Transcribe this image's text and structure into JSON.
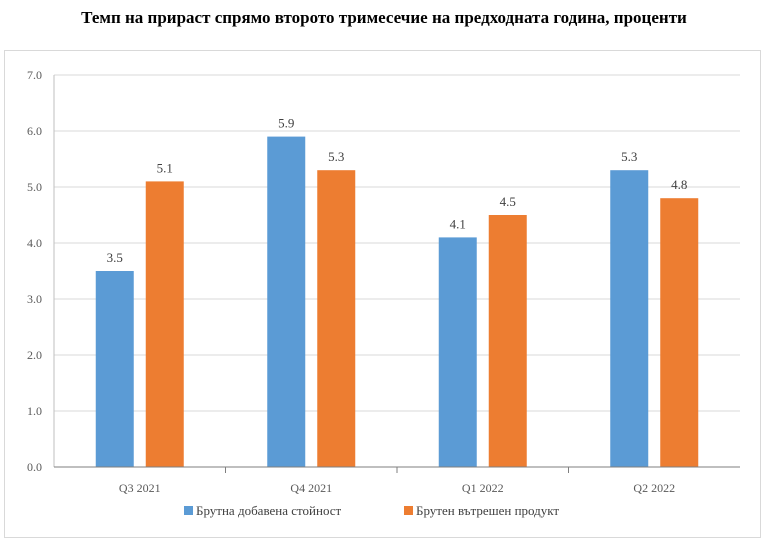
{
  "chart_data": {
    "type": "bar",
    "title": "Темп на прираст спрямо второто тримесечие на предходната година, проценти",
    "categories": [
      "Q3 2021",
      "Q4 2021",
      "Q1 2022",
      "Q2 2022"
    ],
    "series": [
      {
        "name": "Брутна добавена стойност",
        "color": "#5b9bd5",
        "values": [
          3.5,
          5.9,
          4.1,
          5.3
        ]
      },
      {
        "name": "Брутен вътрешен продукт",
        "color": "#ed7d31",
        "values": [
          5.1,
          5.3,
          4.5,
          4.8
        ]
      }
    ],
    "data_labels": [
      [
        "3.5",
        "5.9",
        "4.1",
        "5.3"
      ],
      [
        "5.1",
        "5.3",
        "4.5",
        "4.8"
      ]
    ],
    "ylim": [
      0,
      7
    ],
    "yticks": [
      "0.0",
      "1.0",
      "2.0",
      "3.0",
      "4.0",
      "5.0",
      "6.0",
      "7.0"
    ],
    "grid": true,
    "legend_position": "bottom"
  }
}
